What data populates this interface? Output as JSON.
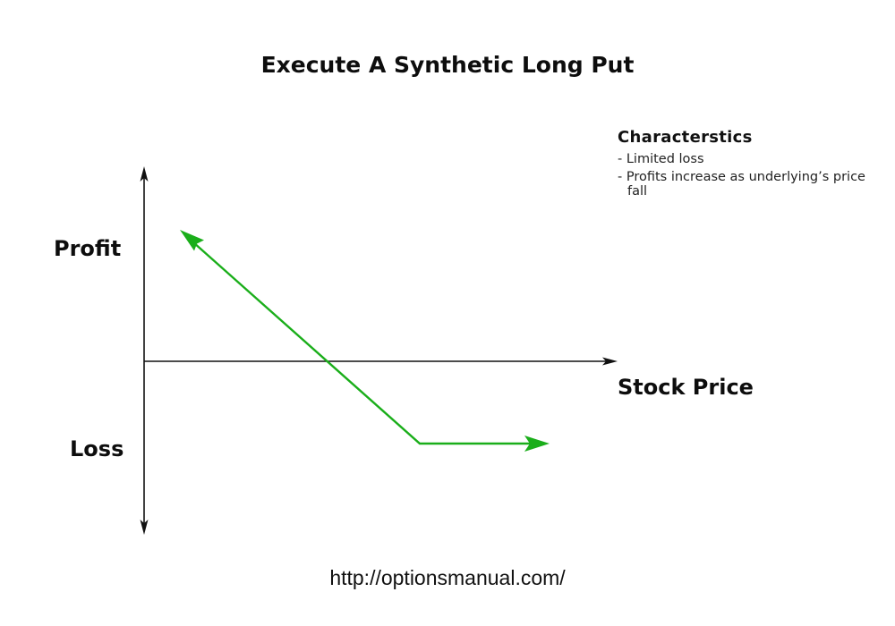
{
  "title": "Execute A Synthetic Long Put",
  "axis_labels": {
    "profit": "Profit",
    "loss": "Loss",
    "x": "Stock Price"
  },
  "characteristics": {
    "heading": "Characterstics",
    "items": [
      "- Limited loss",
      "- Profits increase as underlying’s price fall"
    ]
  },
  "footer_url": "http://optionsmanual.com/",
  "colors": {
    "payoff_line": "#1aae1a",
    "axes": "#111111"
  }
}
